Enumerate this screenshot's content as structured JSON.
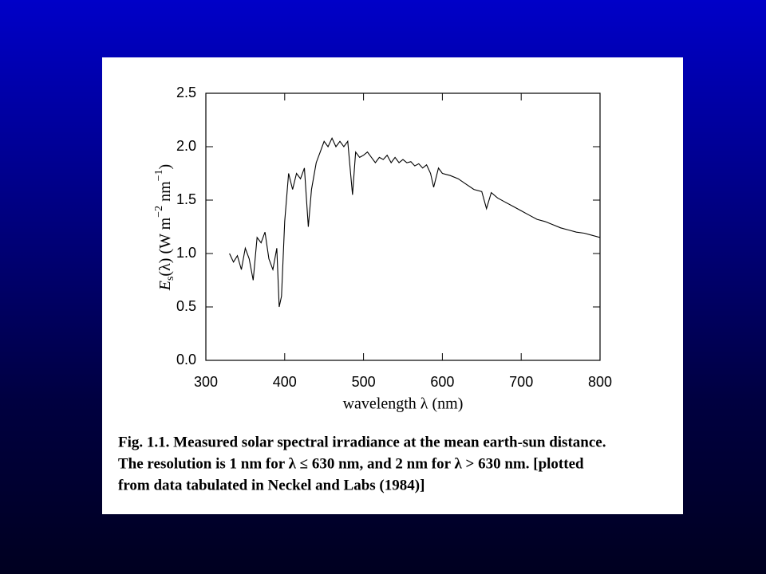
{
  "chart_data": {
    "type": "line",
    "xlabel": "wavelength λ (nm)",
    "ylabel": [
      "E",
      "s",
      "(λ) (W m",
      "−2",
      " nm",
      "−1",
      ")"
    ],
    "caption": [
      "Fig. 1.1.  Measured solar spectral irradiance at the mean earth-sun distance.",
      "The resolution is 1 nm for λ ≤ 630 nm, and 2 nm for λ > 630 nm.  [plotted",
      "from data tabulated in Neckel and Labs (1984)]"
    ],
    "x": [
      330,
      335,
      340,
      345,
      350,
      355,
      360,
      365,
      370,
      375,
      380,
      385,
      390,
      393,
      396,
      400,
      405,
      410,
      415,
      420,
      425,
      430,
      434,
      440,
      445,
      450,
      455,
      460,
      465,
      470,
      475,
      480,
      486,
      490,
      495,
      500,
      505,
      510,
      515,
      520,
      525,
      530,
      535,
      540,
      545,
      550,
      555,
      560,
      565,
      570,
      575,
      580,
      585,
      589,
      595,
      600,
      610,
      620,
      630,
      640,
      650,
      656,
      662,
      670,
      680,
      690,
      700,
      710,
      720,
      730,
      740,
      750,
      760,
      770,
      780,
      790,
      800
    ],
    "values": [
      1.0,
      0.92,
      0.98,
      0.85,
      1.05,
      0.95,
      0.75,
      1.15,
      1.1,
      1.2,
      0.95,
      0.85,
      1.05,
      0.5,
      0.6,
      1.3,
      1.75,
      1.6,
      1.75,
      1.7,
      1.8,
      1.25,
      1.6,
      1.85,
      1.95,
      2.05,
      2.0,
      2.08,
      2.0,
      2.05,
      2.0,
      2.05,
      1.55,
      1.95,
      1.9,
      1.92,
      1.95,
      1.9,
      1.85,
      1.9,
      1.88,
      1.92,
      1.85,
      1.9,
      1.85,
      1.88,
      1.85,
      1.86,
      1.82,
      1.84,
      1.8,
      1.83,
      1.75,
      1.62,
      1.8,
      1.75,
      1.73,
      1.7,
      1.65,
      1.6,
      1.58,
      1.42,
      1.57,
      1.52,
      1.48,
      1.44,
      1.4,
      1.36,
      1.32,
      1.3,
      1.27,
      1.24,
      1.22,
      1.2,
      1.19,
      1.17,
      1.15
    ],
    "color": "#000000",
    "xlim": [
      300,
      800
    ],
    "xticks": [
      300,
      400,
      500,
      600,
      700,
      800
    ],
    "ylim": [
      0,
      2.5
    ],
    "yticks": [
      {
        "value": 0,
        "label": "0.0"
      },
      0.5,
      {
        "value": 1,
        "label": "1.0"
      },
      1.5,
      {
        "value": 2,
        "label": "2.0"
      },
      2.5
    ]
  }
}
